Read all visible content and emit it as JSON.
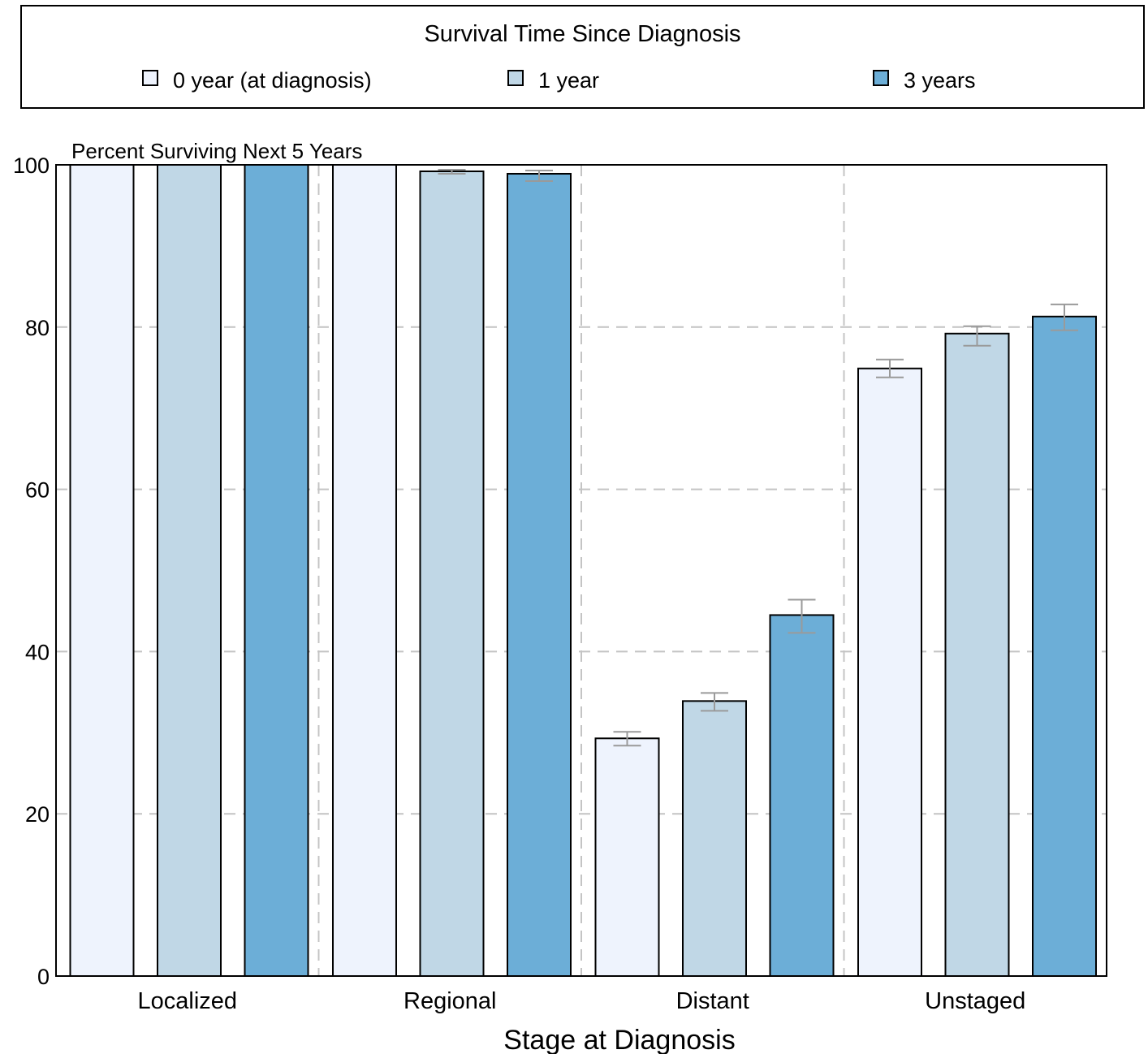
{
  "legend": {
    "title": "Survival Time Since Diagnosis",
    "items": [
      {
        "label": "0 year (at diagnosis)",
        "color": "#eef3fd"
      },
      {
        "label": "1 year",
        "color": "#c0d7e6"
      },
      {
        "label": "3 years",
        "color": "#6caed7"
      }
    ]
  },
  "chart_data": {
    "type": "bar",
    "title": "",
    "ylabel": "Percent Surviving Next 5 Years",
    "xlabel": "Stage at Diagnosis",
    "ylim": [
      0,
      100
    ],
    "yticks": [
      0,
      20,
      40,
      60,
      80,
      100
    ],
    "categories": [
      "Localized",
      "Regional",
      "Distant",
      "Unstaged"
    ],
    "series": [
      {
        "name": "0 year (at diagnosis)",
        "color": "#eef3fd",
        "values": [
          100,
          100,
          29.3,
          74.9
        ],
        "errors": [
          null,
          null,
          [
            28.4,
            30.1
          ],
          [
            73.8,
            76.0
          ]
        ]
      },
      {
        "name": "1 year",
        "color": "#c0d7e6",
        "values": [
          100,
          99.2,
          33.9,
          79.2
        ],
        "errors": [
          null,
          [
            98.9,
            99.4
          ],
          [
            32.7,
            34.9
          ],
          [
            77.7,
            80.1
          ]
        ]
      },
      {
        "name": "3 years",
        "color": "#6caed7",
        "values": [
          100,
          98.9,
          44.5,
          81.3
        ],
        "errors": [
          null,
          [
            98.0,
            99.3
          ],
          [
            42.3,
            46.4
          ],
          [
            79.6,
            82.8
          ]
        ]
      }
    ],
    "grid": true,
    "legend_position": "top",
    "error_bar_color": "#9a9a9a",
    "grid_color": "#c4c4c4"
  }
}
